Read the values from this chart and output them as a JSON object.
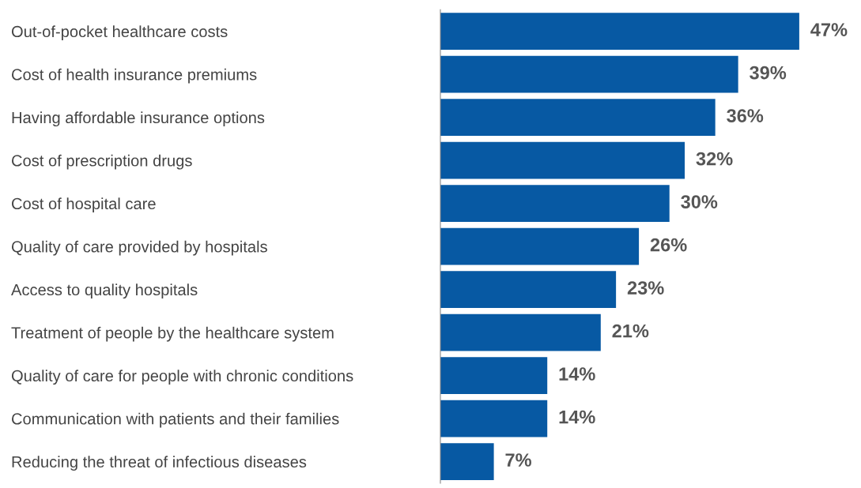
{
  "chart_data": {
    "type": "bar",
    "orientation": "horizontal",
    "categories": [
      "Out-of-pocket healthcare costs",
      "Cost of health insurance premiums",
      "Having affordable insurance options",
      "Cost of prescription drugs",
      "Cost of hospital care",
      "Quality of care provided by hospitals",
      "Access to quality hospitals",
      "Treatment of people by the healthcare system",
      "Quality of care for people with chronic conditions",
      "Communication with patients and their families",
      "Reducing the threat of infectious diseases"
    ],
    "values": [
      47,
      39,
      36,
      32,
      30,
      26,
      23,
      21,
      14,
      14,
      7
    ],
    "value_labels": [
      "47%",
      "39%",
      "36%",
      "32%",
      "30%",
      "26%",
      "23%",
      "21%",
      "14%",
      "14%",
      "7%"
    ],
    "color": "#0759a3",
    "tick_labels": "y",
    "grid": false,
    "legend": false
  }
}
